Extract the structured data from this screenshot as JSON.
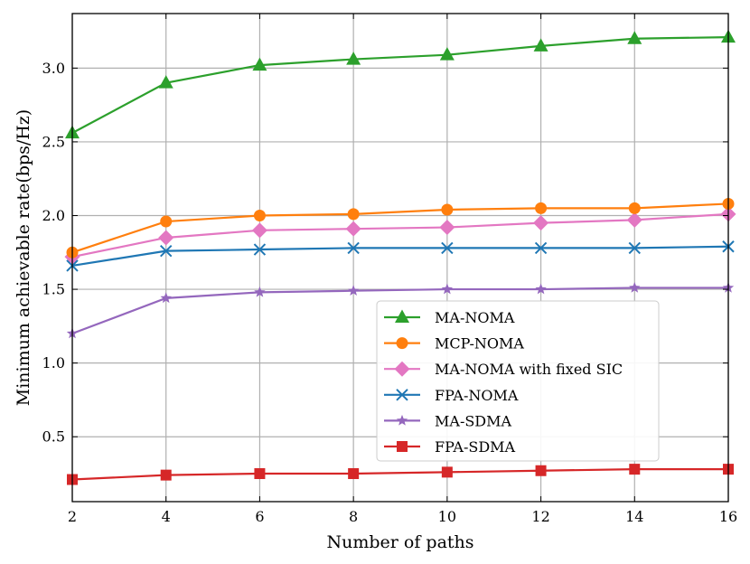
{
  "chart_data": {
    "type": "line",
    "title": "",
    "xlabel": "Number of paths",
    "ylabel": "Minimum achievable rate(bps/Hz)",
    "xlim": [
      2,
      16
    ],
    "ylim": [
      0.06,
      3.37
    ],
    "xticks": [
      2,
      4,
      6,
      8,
      10,
      12,
      14,
      16
    ],
    "yticks": [
      0.5,
      1.0,
      1.5,
      2.0,
      2.5,
      3.0
    ],
    "xtick_labels": [
      "2",
      "4",
      "6",
      "8",
      "10",
      "12",
      "14",
      "16"
    ],
    "ytick_labels": [
      "0.5",
      "1.0",
      "1.5",
      "2.0",
      "2.5",
      "3.0"
    ],
    "grid": true,
    "legend_position": "center-right",
    "x": [
      2,
      4,
      6,
      8,
      10,
      12,
      14,
      16
    ],
    "series": [
      {
        "name": "MA-NOMA",
        "color": "#2ca02c",
        "marker": "triangle",
        "values": [
          2.56,
          2.9,
          3.02,
          3.06,
          3.09,
          3.15,
          3.2,
          3.21
        ]
      },
      {
        "name": "MCP-NOMA",
        "color": "#ff7f0e",
        "marker": "circle",
        "values": [
          1.75,
          1.96,
          2.0,
          2.01,
          2.04,
          2.05,
          2.05,
          2.08
        ]
      },
      {
        "name": "MA-NOMA with fixed SIC",
        "color": "#e377c2",
        "marker": "diamond",
        "values": [
          1.72,
          1.85,
          1.9,
          1.91,
          1.92,
          1.95,
          1.97,
          2.01
        ]
      },
      {
        "name": "FPA-NOMA",
        "color": "#1f77b4",
        "marker": "x",
        "values": [
          1.66,
          1.76,
          1.77,
          1.78,
          1.78,
          1.78,
          1.78,
          1.79
        ]
      },
      {
        "name": "MA-SDMA",
        "color": "#9467bd",
        "marker": "star",
        "values": [
          1.2,
          1.44,
          1.48,
          1.49,
          1.5,
          1.5,
          1.51,
          1.51
        ]
      },
      {
        "name": "FPA-SDMA",
        "color": "#d62728",
        "marker": "square",
        "values": [
          0.21,
          0.24,
          0.25,
          0.25,
          0.26,
          0.27,
          0.28,
          0.28
        ]
      }
    ]
  }
}
